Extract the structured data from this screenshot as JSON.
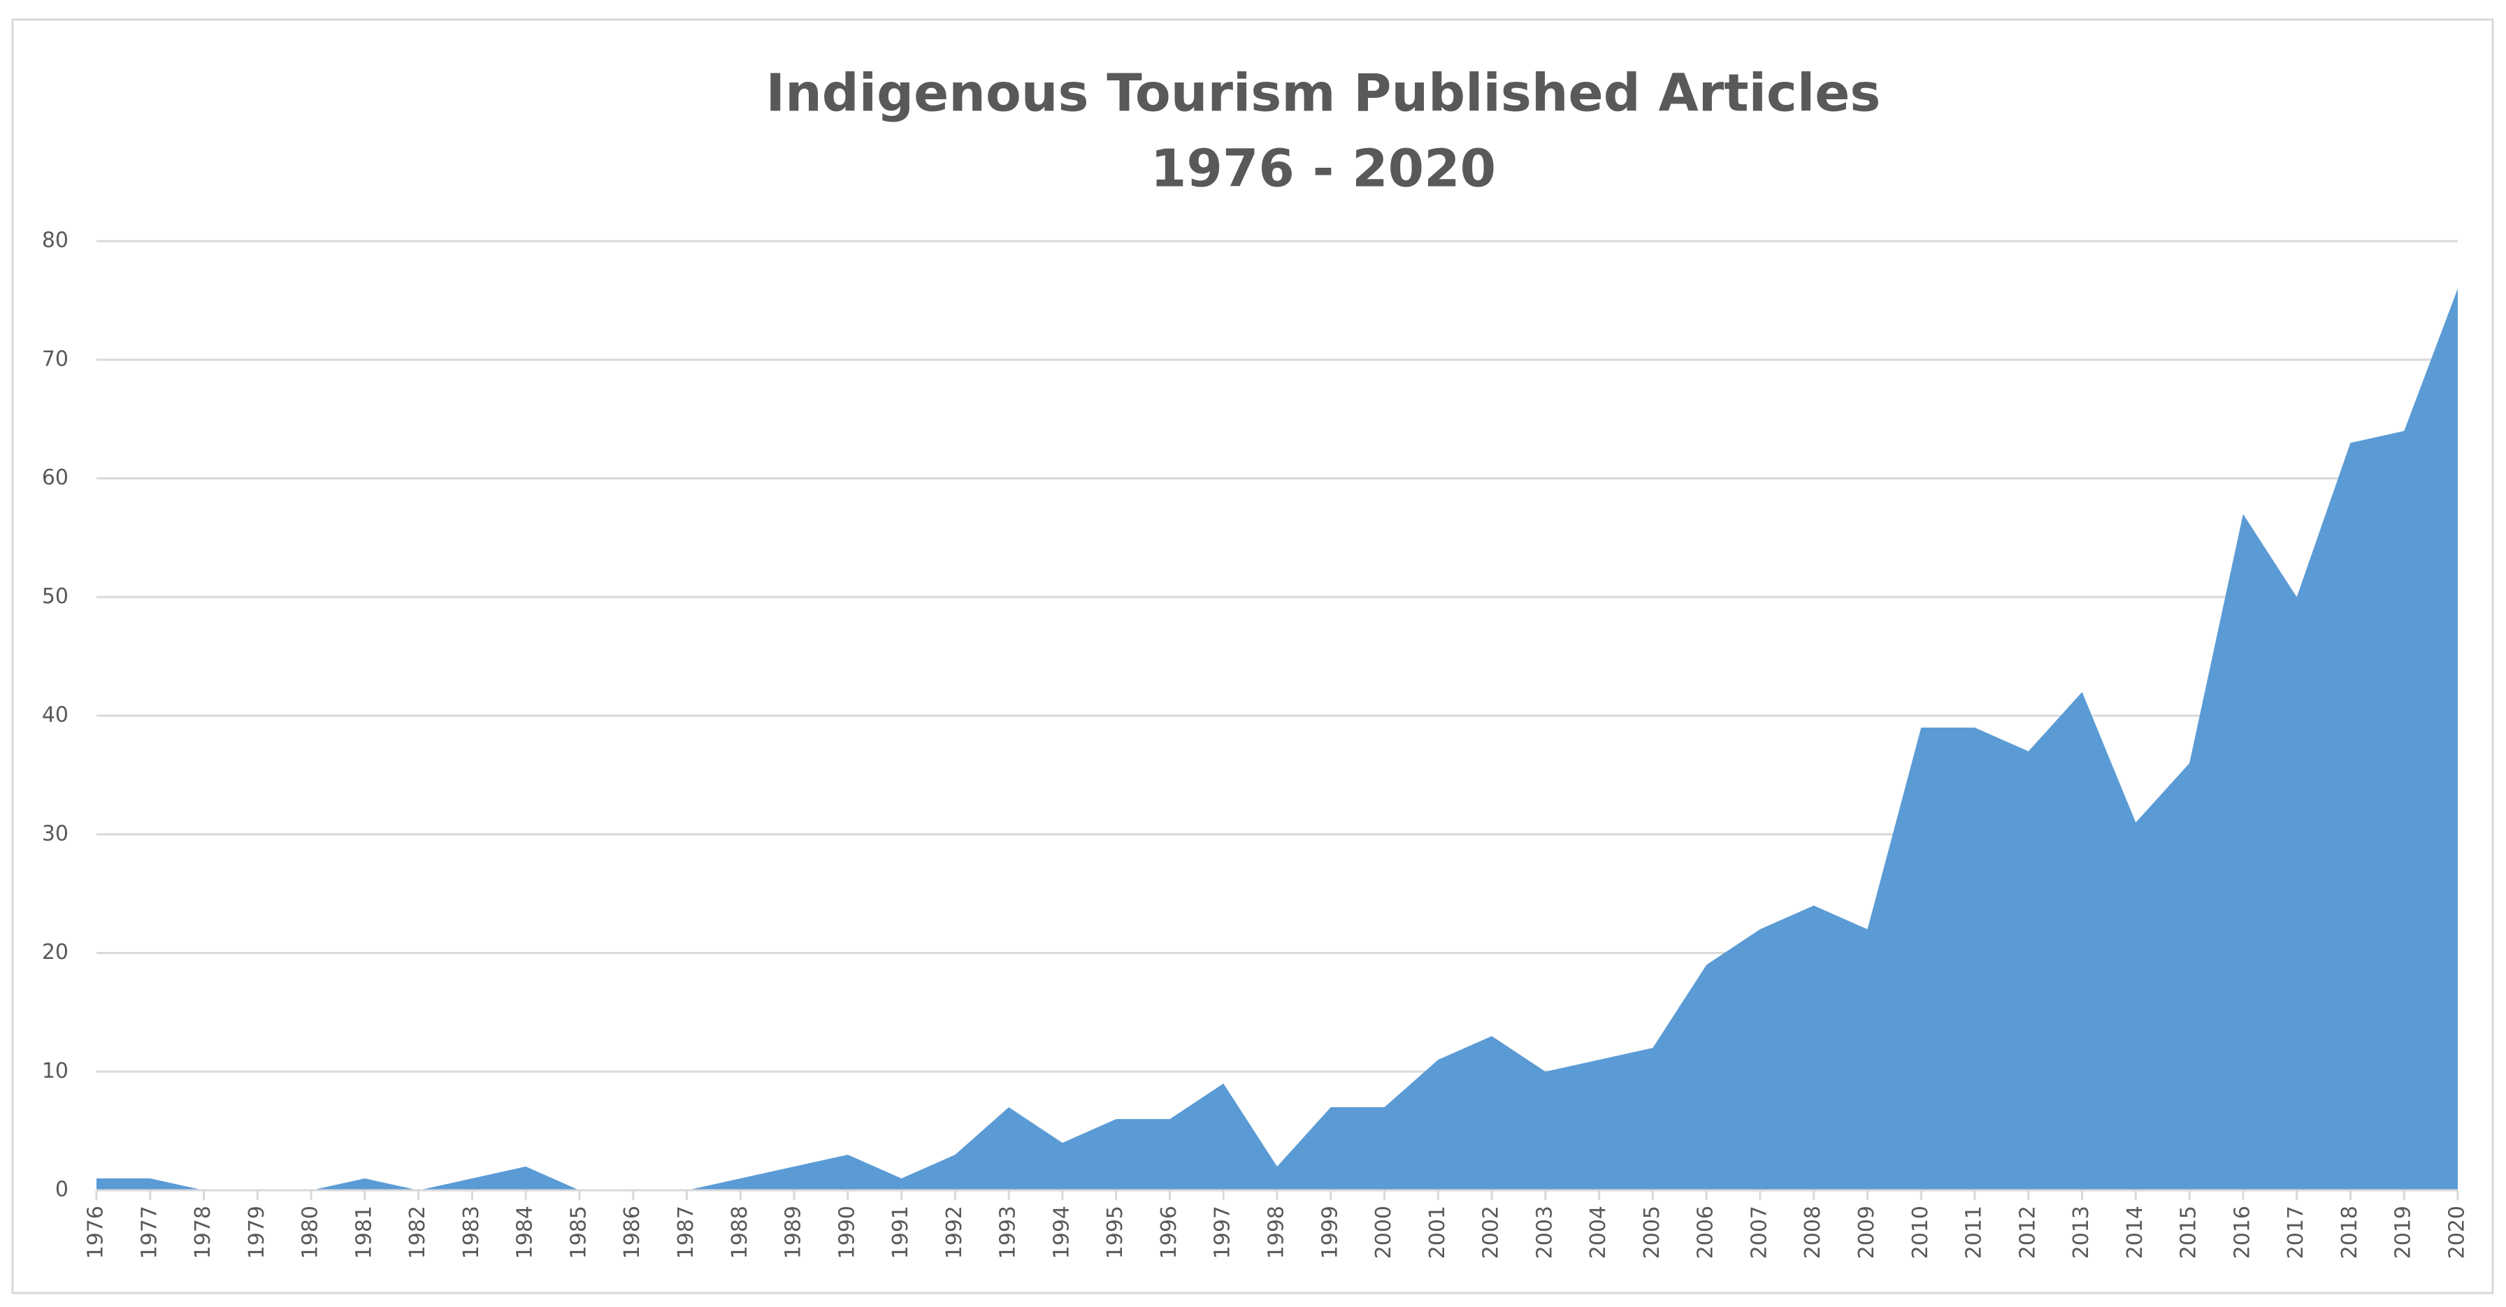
{
  "chart_data": {
    "type": "area",
    "title": "Indigenous Tourism Published Articles",
    "subtitle": "1976 - 2020",
    "categories": [
      "1976",
      "1977",
      "1978",
      "1979",
      "1980",
      "1981",
      "1982",
      "1983",
      "1984",
      "1985",
      "1986",
      "1987",
      "1988",
      "1989",
      "1990",
      "1991",
      "1992",
      "1993",
      "1994",
      "1995",
      "1996",
      "1997",
      "1998",
      "1999",
      "2000",
      "2001",
      "2002",
      "2003",
      "2004",
      "2005",
      "2006",
      "2007",
      "2008",
      "2009",
      "2010",
      "2011",
      "2012",
      "2013",
      "2014",
      "2015",
      "2016",
      "2017",
      "2018",
      "2019",
      "2020"
    ],
    "values": [
      1,
      1,
      0,
      0,
      0,
      1,
      0,
      1,
      2,
      0,
      0,
      0,
      1,
      2,
      3,
      1,
      3,
      7,
      4,
      6,
      6,
      9,
      2,
      7,
      7,
      11,
      13,
      10,
      11,
      12,
      19,
      22,
      24,
      22,
      39,
      39,
      37,
      42,
      31,
      36,
      57,
      50,
      63,
      64,
      76
    ],
    "color": "#5b9bd5",
    "ylim": [
      0,
      80
    ],
    "yticks": [
      0,
      10,
      20,
      30,
      40,
      50,
      60,
      70,
      80
    ],
    "grid": true
  }
}
